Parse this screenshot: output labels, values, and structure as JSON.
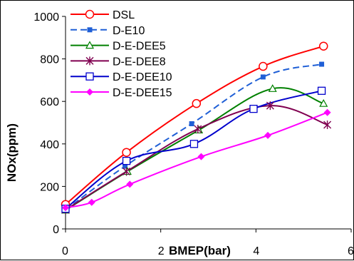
{
  "chart_data": {
    "type": "line",
    "xlabel": "BMEP(bar)",
    "ylabel": "NOx(ppm)",
    "xlim": [
      0,
      6
    ],
    "ylim": [
      0,
      1000
    ],
    "xticks": [
      "0",
      "2",
      "4",
      "6"
    ],
    "yticks": [
      "0",
      "200",
      "400",
      "600",
      "800",
      "1000"
    ],
    "grid": false,
    "legend_position": "top-left",
    "series": [
      {
        "name": "DSL",
        "color": "#ff0000",
        "dash": "solid",
        "marker": "circle-open",
        "x": [
          0,
          1.28,
          2.75,
          4.15,
          5.42
        ],
        "y": [
          115,
          360,
          590,
          765,
          860
        ]
      },
      {
        "name": "D-E10",
        "color": "#1f5fd6",
        "dash": "dashed",
        "marker": "square-filled",
        "x": [
          0,
          1.25,
          2.65,
          4.15,
          5.38
        ],
        "y": [
          90,
          295,
          495,
          715,
          775
        ]
      },
      {
        "name": "D-E-DEE5",
        "color": "#008000",
        "dash": "solid",
        "marker": "triangle-open",
        "x": [
          0,
          1.3,
          2.8,
          4.35,
          5.42
        ],
        "y": [
          88,
          270,
          465,
          660,
          590
        ]
      },
      {
        "name": "D-E-DEE8",
        "color": "#800050",
        "dash": "solid",
        "marker": "star",
        "x": [
          0,
          1.28,
          2.78,
          4.3,
          5.5
        ],
        "y": [
          90,
          270,
          470,
          580,
          490
        ]
      },
      {
        "name": "D-E-DEE10",
        "color": "#0000cc",
        "dash": "solid",
        "marker": "square-open",
        "x": [
          0,
          1.28,
          2.7,
          3.95,
          5.38
        ],
        "y": [
          95,
          320,
          400,
          565,
          650
        ]
      },
      {
        "name": "D-E-DEE15",
        "color": "#ff00ff",
        "dash": "solid",
        "marker": "diamond-filled",
        "x": [
          0,
          0.55,
          1.35,
          2.85,
          4.25,
          5.5
        ],
        "y": [
          100,
          125,
          210,
          340,
          440,
          548
        ]
      }
    ]
  }
}
